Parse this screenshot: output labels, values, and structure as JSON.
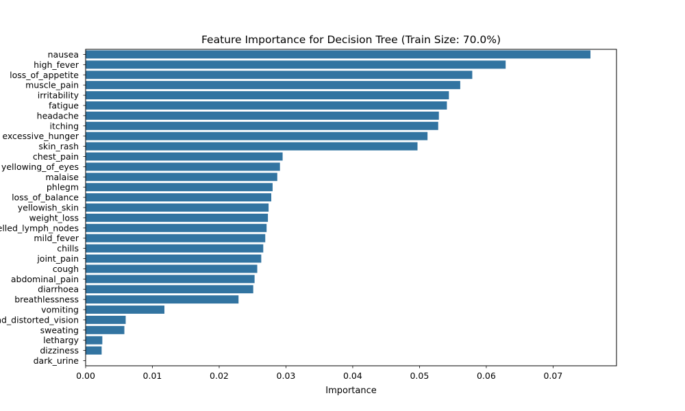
{
  "chart_data": {
    "type": "bar",
    "orientation": "horizontal",
    "title": "Feature Importance for Decision Tree (Train Size: 70.0%)",
    "xlabel": "Importance",
    "ylabel": "",
    "xlim": [
      0,
      0.0795
    ],
    "xticks": [
      0.0,
      0.01,
      0.02,
      0.03,
      0.04,
      0.05,
      0.06,
      0.07
    ],
    "xtick_labels": [
      "0.00",
      "0.01",
      "0.02",
      "0.03",
      "0.04",
      "0.05",
      "0.06",
      "0.07"
    ],
    "grid": false,
    "legend": "none",
    "bar_color": "#3274a1",
    "categories": [
      "nausea",
      "high_fever",
      "loss_of_appetite",
      "muscle_pain",
      "irritability",
      "fatigue",
      "headache",
      "itching",
      "excessive_hunger",
      "skin_rash",
      "chest_pain",
      "yellowing_of_eyes",
      "malaise",
      "phlegm",
      "loss_of_balance",
      "yellowish_skin",
      "weight_loss",
      "swelled_lymph_nodes",
      "mild_fever",
      "chills",
      "joint_pain",
      "cough",
      "abdominal_pain",
      "diarrhoea",
      "breathlessness",
      "vomiting",
      "blurred_and_distorted_vision",
      "sweating",
      "lethargy",
      "dizziness",
      "dark_urine"
    ],
    "values": [
      0.0756,
      0.0629,
      0.0579,
      0.0561,
      0.0544,
      0.0541,
      0.0529,
      0.0528,
      0.0512,
      0.0497,
      0.0295,
      0.0291,
      0.0287,
      0.028,
      0.0278,
      0.0274,
      0.0273,
      0.0271,
      0.0269,
      0.0266,
      0.0263,
      0.0257,
      0.0253,
      0.0251,
      0.0229,
      0.0118,
      0.006,
      0.0058,
      0.0025,
      0.0024,
      0.0
    ]
  }
}
